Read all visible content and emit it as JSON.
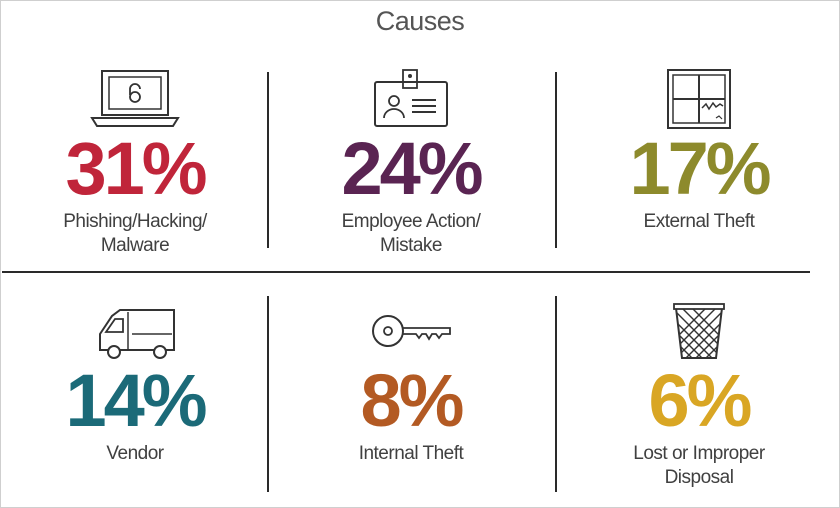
{
  "title": "Causes",
  "causes": [
    {
      "percent": "31%",
      "line1": "Phishing/Hacking/",
      "line2": "Malware",
      "color": "#c0253a",
      "icon": "laptop-lock-icon"
    },
    {
      "percent": "24%",
      "line1": "Employee Action/",
      "line2": "Mistake",
      "color": "#5a2452",
      "icon": "id-badge-icon"
    },
    {
      "percent": "17%",
      "line1": "External Theft",
      "line2": "",
      "color": "#8d8a2c",
      "icon": "broken-window-icon"
    },
    {
      "percent": "14%",
      "line1": "Vendor",
      "line2": "",
      "color": "#1b6a78",
      "icon": "van-icon"
    },
    {
      "percent": "8%",
      "line1": "Internal Theft",
      "line2": "",
      "color": "#b35a23",
      "icon": "key-icon"
    },
    {
      "percent": "6%",
      "line1": "Lost or Improper",
      "line2": "Disposal",
      "color": "#d9a624",
      "icon": "wastebasket-icon"
    }
  ]
}
